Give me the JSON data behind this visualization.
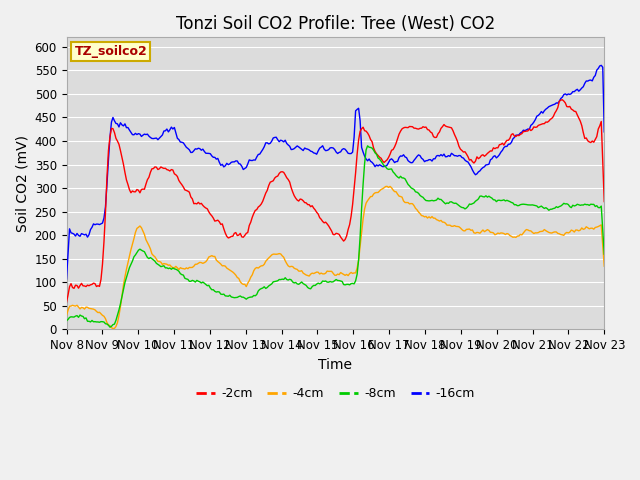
{
  "title": "Tonzi Soil CO2 Profile: Tree (West) CO2",
  "xlabel": "Time",
  "ylabel": "Soil CO2 (mV)",
  "ylim": [
    0,
    620
  ],
  "yticks": [
    0,
    50,
    100,
    150,
    200,
    250,
    300,
    350,
    400,
    450,
    500,
    550,
    600
  ],
  "xtick_labels": [
    "Nov 8",
    "Nov 9",
    "Nov 10",
    "Nov 11",
    "Nov 12",
    "Nov 13",
    "Nov 14",
    "Nov 15",
    "Nov 16",
    "Nov 17",
    "Nov 18",
    "Nov 19",
    "Nov 20",
    "Nov 21",
    "Nov 22",
    "Nov 23"
  ],
  "series_colors": {
    "-2cm": "#ff0000",
    "-4cm": "#ffa500",
    "-8cm": "#00cc00",
    "-16cm": "#0000ff"
  },
  "legend_label": "TZ_soilco2",
  "fig_bg_color": "#f0f0f0",
  "plot_bg_color": "#dcdcdc",
  "grid_color": "#ffffff",
  "title_fontsize": 12,
  "axis_fontsize": 10,
  "tick_fontsize": 8.5,
  "legend_fontsize": 9
}
